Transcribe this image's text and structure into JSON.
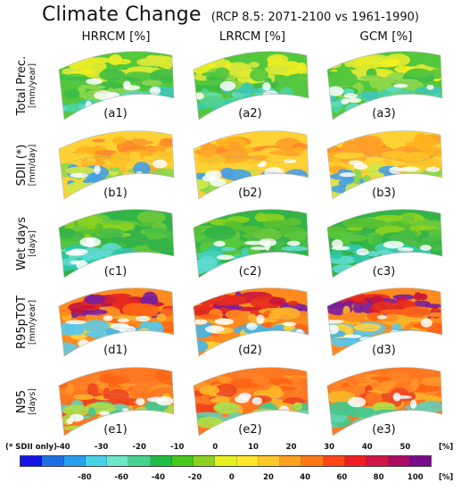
{
  "title": {
    "main": "Climate Change",
    "sub": "(RCP 8.5: 2071-2100 vs 1961-1990)"
  },
  "columns": [
    "HRRCM [%]",
    "LRRCM [%]",
    "GCM [%]"
  ],
  "rows": [
    {
      "name": "Total Prec.",
      "unit": "[mm/year]",
      "labels": [
        "(a1)",
        "(a2)",
        "(a3)"
      ],
      "theme": "prec"
    },
    {
      "name": "SDII (*)",
      "unit": "[mm/day]",
      "labels": [
        "(b1)",
        "(b2)",
        "(b3)"
      ],
      "theme": "sdii"
    },
    {
      "name": "Wet days",
      "unit": "[days]",
      "labels": [
        "(c1)",
        "(c2)",
        "(c3)"
      ],
      "theme": "wet"
    },
    {
      "name": "R95pTOT",
      "unit": "[mm/year]",
      "labels": [
        "(d1)",
        "(d2)",
        "(d3)"
      ],
      "theme": "r95"
    },
    {
      "name": "N95",
      "unit": "[days]",
      "labels": [
        "(e1)",
        "(e2)",
        "(e3)"
      ],
      "theme": "n95"
    }
  ],
  "colorbar": {
    "note": "(* SDII only)",
    "top_ticks": [
      "-40",
      "-30",
      "-20",
      "-10",
      "0",
      "10",
      "20",
      "30",
      "40",
      "50"
    ],
    "top_unit": "[%]",
    "bottom_ticks": [
      "-80",
      "-60",
      "-40",
      "-20",
      "0",
      "20",
      "40",
      "60",
      "80",
      "100"
    ],
    "bottom_unit": "[%]",
    "colors": [
      "#1414e6",
      "#1e6ee6",
      "#28a0f0",
      "#46d2e6",
      "#6ee6c8",
      "#46d28c",
      "#1ebe46",
      "#46c81e",
      "#8cd21e",
      "#e6f01e",
      "#ffe628",
      "#ffc828",
      "#ffa01e",
      "#ff7814",
      "#ff4614",
      "#f01e1e",
      "#d21446",
      "#aa0a64",
      "#7a0a8c"
    ]
  }
}
